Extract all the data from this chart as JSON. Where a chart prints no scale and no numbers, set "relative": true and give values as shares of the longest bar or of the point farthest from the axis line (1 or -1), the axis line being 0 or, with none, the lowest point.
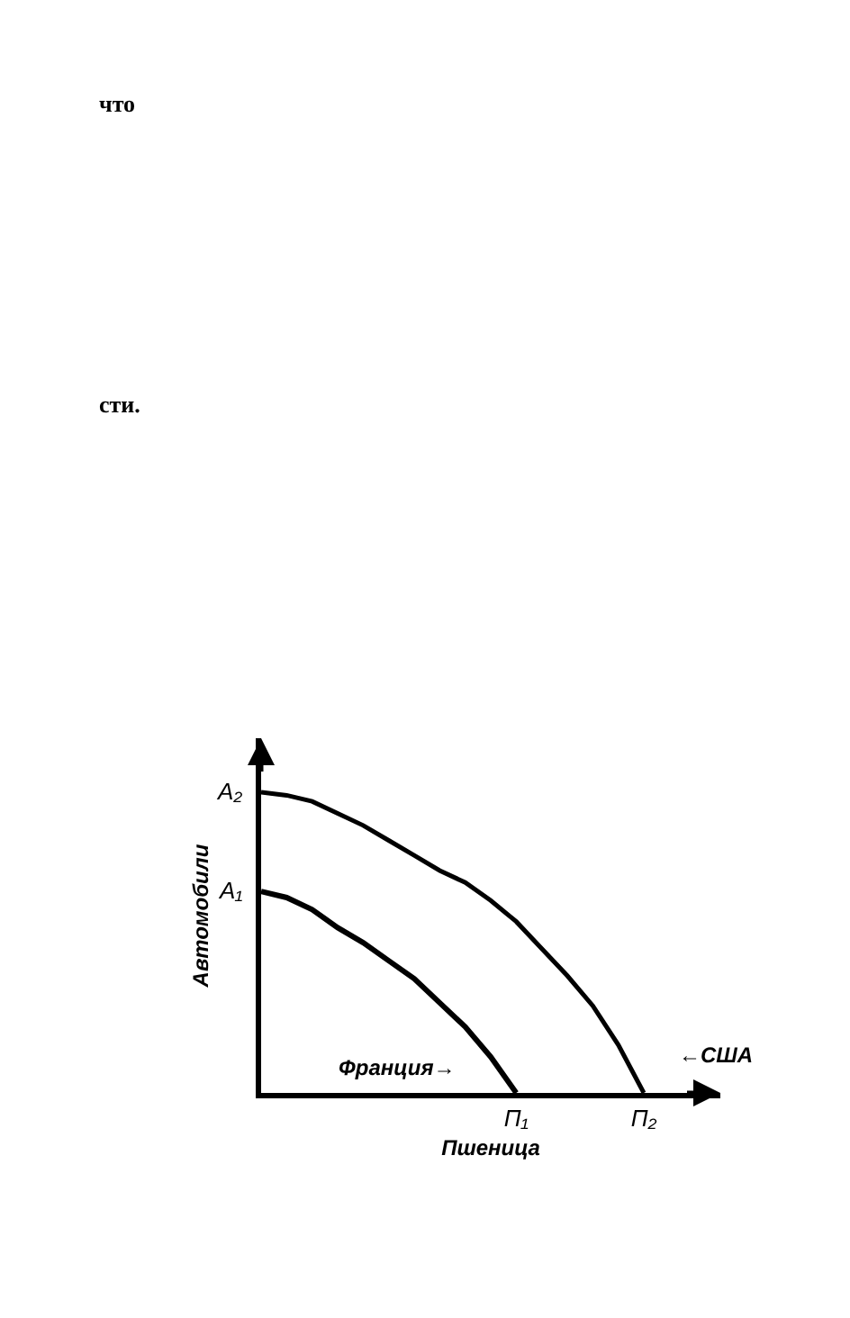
{
  "chart_data": {
    "type": "line",
    "relative": true,
    "xlabel": "Пшеница",
    "ylabel": "Автомобили",
    "tick_labels": "x",
    "marker": "none",
    "line_style": "solid",
    "categories": [
      null,
      null,
      null,
      null,
      null,
      null,
      null,
      null,
      null,
      null,
      "П₁",
      null,
      null,
      null,
      null,
      "П₂"
    ],
    "series": [
      {
        "name": "Франция→",
        "color": "#000000",
        "values": [
          0.67,
          0.65,
          0.61,
          0.55,
          0.5,
          0.44,
          0.38,
          0.3,
          0.22,
          0.12,
          0,
          null,
          null,
          null,
          null,
          null
        ]
      },
      {
        "name": "←США",
        "color": "#000000",
        "values": [
          1,
          0.99,
          0.97,
          0.93,
          0.89,
          0.84,
          0.79,
          0.74,
          0.7,
          0.64,
          0.57,
          0.48,
          0.39,
          0.29,
          0.16,
          0
        ]
      }
    ],
    "annotations": [
      "A₂",
      "A₁",
      "что",
      "сти."
    ]
  }
}
